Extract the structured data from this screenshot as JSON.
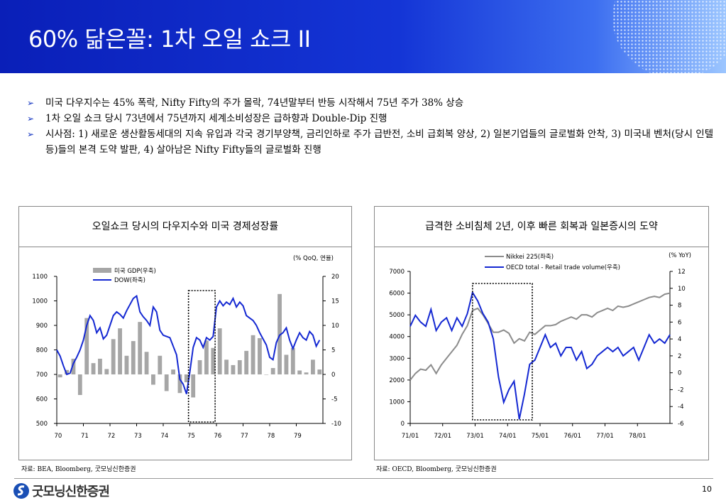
{
  "slide": {
    "title": "60% 닮은꼴: 1차 오일 쇼크 II",
    "page_number": "10",
    "logo_text": "굿모닝신한증권"
  },
  "bullets": [
    "미국 다우지수는 45% 폭락, Nifty Fifty의 주가 몰락, 74년말부터 반등 시작해서 75년 주가 38% 상승",
    "1차 오일 쇼크 당시 73년에서 75년까지 세계소비성장은 급하향과 Double-Dip 진행",
    "시사점: 1) 새로운 생산활동세대의 지속 유입과 각국 경기부양책, 금리인하로 주가 급반전, 소비 급회복 양상, 2) 일본기업들의 글로벌화 안착, 3) 미국내 벤처(당시 인텔 등)들의 본격 도약 발판, 4) 살아남은 Nifty Fifty들의 글로벌화 진행"
  ],
  "colors": {
    "header": "#0d2fbf",
    "series_blue": "#1428d2",
    "series_gray": "#8c8c8c",
    "bar_gray": "#a6a6a6"
  },
  "chart_data": [
    {
      "type": "bar+line",
      "title": "오일쇼크 당시의 다우지수와 미국 경제성장률",
      "unit_note": "(% QoQ, 연율)",
      "source": "자료: BEA, Bloomberg, 굿모닝신한증권",
      "x_tick_labels": [
        "70",
        "71",
        "72",
        "73",
        "74",
        "75",
        "76",
        "77",
        "78",
        "79"
      ],
      "left_axis": {
        "ticks": [
          500,
          600,
          700,
          800,
          900,
          1000,
          1100
        ],
        "ylim": [
          500,
          1100
        ]
      },
      "right_axis": {
        "ticks": [
          -10,
          -5,
          0,
          5,
          10,
          15,
          20
        ],
        "ylim": [
          -10,
          20
        ]
      },
      "legend_position": "top-left",
      "series": [
        {
          "name": "미국 GDP(우축)",
          "kind": "bar",
          "axis": "right",
          "x": [
            70.0,
            70.25,
            70.5,
            70.75,
            71.0,
            71.25,
            71.5,
            71.75,
            72.0,
            72.25,
            72.5,
            72.75,
            73.0,
            73.25,
            73.5,
            73.75,
            74.0,
            74.25,
            74.5,
            74.75,
            75.0,
            75.25,
            75.5,
            75.75,
            76.0,
            76.25,
            76.5,
            76.75,
            77.0,
            77.25,
            77.5,
            77.75,
            78.0,
            78.25,
            78.5,
            78.75,
            79.0,
            79.25,
            79.5,
            79.75
          ],
          "values": [
            -0.6,
            0.9,
            3.2,
            -4.2,
            11.5,
            2.3,
            3.2,
            1.1,
            7.2,
            9.4,
            3.8,
            6.8,
            10.7,
            4.6,
            -2.1,
            3.8,
            -3.4,
            1.0,
            -3.8,
            -1.6,
            -4.7,
            2.9,
            6.9,
            5.4,
            9.4,
            3.0,
            1.9,
            2.9,
            4.8,
            8.0,
            7.4,
            0.0,
            1.3,
            16.4,
            4.0,
            5.4,
            0.8,
            0.4,
            3.0,
            1.0
          ]
        },
        {
          "name": "DOW(좌축)",
          "kind": "line",
          "axis": "left",
          "x": [
            70.0,
            70.125,
            70.25,
            70.375,
            70.5,
            70.625,
            70.75,
            70.875,
            71.0,
            71.125,
            71.25,
            71.375,
            71.5,
            71.625,
            71.75,
            71.875,
            72.0,
            72.125,
            72.25,
            72.375,
            72.5,
            72.625,
            72.75,
            72.875,
            73.0,
            73.125,
            73.25,
            73.375,
            73.5,
            73.625,
            73.75,
            73.875,
            74.0,
            74.125,
            74.25,
            74.375,
            74.5,
            74.625,
            74.75,
            74.875,
            75.0,
            75.125,
            75.25,
            75.375,
            75.5,
            75.625,
            75.75,
            75.875,
            76.0,
            76.125,
            76.25,
            76.375,
            76.5,
            76.625,
            76.75,
            76.875,
            77.0,
            77.125,
            77.25,
            77.375,
            77.5,
            77.625,
            77.75,
            77.875,
            78.0,
            78.125,
            78.25,
            78.375,
            78.5,
            78.625,
            78.75,
            78.875,
            79.0,
            79.125,
            79.25,
            79.375,
            79.5,
            79.625,
            79.75,
            79.875
          ],
          "values": [
            800,
            775,
            735,
            700,
            705,
            745,
            770,
            800,
            840,
            900,
            940,
            920,
            870,
            890,
            845,
            860,
            900,
            940,
            955,
            945,
            930,
            960,
            985,
            1010,
            1020,
            955,
            935,
            920,
            900,
            975,
            955,
            880,
            860,
            855,
            850,
            815,
            780,
            680,
            660,
            620,
            710,
            810,
            850,
            840,
            810,
            850,
            840,
            855,
            975,
            1000,
            980,
            995,
            985,
            1010,
            975,
            995,
            980,
            940,
            930,
            920,
            900,
            870,
            845,
            820,
            770,
            760,
            830,
            860,
            870,
            890,
            840,
            805,
            840,
            870,
            850,
            840,
            875,
            860,
            815,
            840
          ]
        }
      ],
      "highlight_box": {
        "x_from": 74.95,
        "x_to": 75.95
      }
    },
    {
      "type": "line",
      "title": "급격한 소비침체 2년, 이후 빠른 회복과 일본증시의 도약",
      "unit_note": "(% YoY)",
      "source": "자료: OECD, Bloomberg, 굿모닝신한증권",
      "x_tick_labels": [
        "71/01",
        "72/01",
        "73/01",
        "74/01",
        "75/01",
        "76/01",
        "77/01",
        "78/01"
      ],
      "left_axis": {
        "ticks": [
          0,
          1000,
          2000,
          3000,
          4000,
          5000,
          6000,
          7000
        ],
        "ylim": [
          0,
          7000
        ]
      },
      "right_axis": {
        "ticks": [
          -6,
          -4,
          -2,
          0,
          2,
          4,
          6,
          8,
          10,
          12
        ],
        "ylim": [
          -6,
          12
        ]
      },
      "legend_position": "top-center",
      "series": [
        {
          "name": "Nikkei 225(좌축)",
          "kind": "line",
          "axis": "left",
          "x": [
            0,
            2,
            4,
            6,
            8,
            10,
            12,
            14,
            16,
            18,
            20,
            22,
            24,
            26,
            28,
            30,
            32,
            34,
            36,
            38,
            40,
            42,
            44,
            46,
            48,
            50,
            52,
            54,
            56,
            58,
            60,
            62,
            64,
            66,
            68,
            70,
            72,
            74,
            76,
            78,
            80,
            82,
            84,
            86,
            88,
            90,
            92,
            94,
            96,
            98,
            100
          ],
          "values": [
            2000,
            2300,
            2500,
            2450,
            2700,
            2300,
            2700,
            3000,
            3300,
            3600,
            4100,
            4500,
            5200,
            5300,
            5000,
            4600,
            4200,
            4200,
            4300,
            4150,
            3700,
            3900,
            3800,
            4200,
            4100,
            4300,
            4500,
            4500,
            4550,
            4700,
            4800,
            4900,
            4800,
            5000,
            5000,
            4900,
            5100,
            5200,
            5300,
            5200,
            5400,
            5350,
            5400,
            5500,
            5600,
            5700,
            5800,
            5850,
            5800,
            5950,
            6000
          ]
        },
        {
          "name": "OECD total -  Retail trade volume(우축)",
          "kind": "line",
          "axis": "right",
          "x": [
            0,
            2,
            4,
            6,
            8,
            10,
            12,
            14,
            16,
            18,
            20,
            22,
            24,
            26,
            28,
            30,
            32,
            34,
            36,
            38,
            40,
            42,
            44,
            46,
            48,
            50,
            52,
            54,
            56,
            58,
            60,
            62,
            64,
            66,
            68,
            70,
            72,
            74,
            76,
            78,
            80,
            82,
            84,
            86,
            88,
            90,
            92,
            94,
            96,
            98,
            100
          ],
          "values": [
            5.5,
            6.8,
            6.0,
            5.5,
            7.5,
            5.0,
            6.0,
            6.5,
            5.0,
            6.5,
            5.5,
            7.0,
            9.5,
            8.5,
            7.0,
            6.0,
            4.0,
            -0.5,
            -3.5,
            -2.0,
            -1.0,
            -5.5,
            -2.5,
            1.0,
            1.5,
            3.0,
            4.5,
            3.0,
            3.5,
            2.0,
            3.0,
            3.0,
            1.5,
            2.5,
            0.5,
            1.0,
            2.0,
            2.5,
            3.0,
            2.5,
            3.0,
            2.0,
            2.5,
            3.0,
            1.5,
            3.0,
            4.5,
            3.5,
            4.0,
            3.5,
            4.5
          ]
        }
      ],
      "highlight_box": {
        "x_from": 24,
        "x_to": 47
      }
    }
  ]
}
